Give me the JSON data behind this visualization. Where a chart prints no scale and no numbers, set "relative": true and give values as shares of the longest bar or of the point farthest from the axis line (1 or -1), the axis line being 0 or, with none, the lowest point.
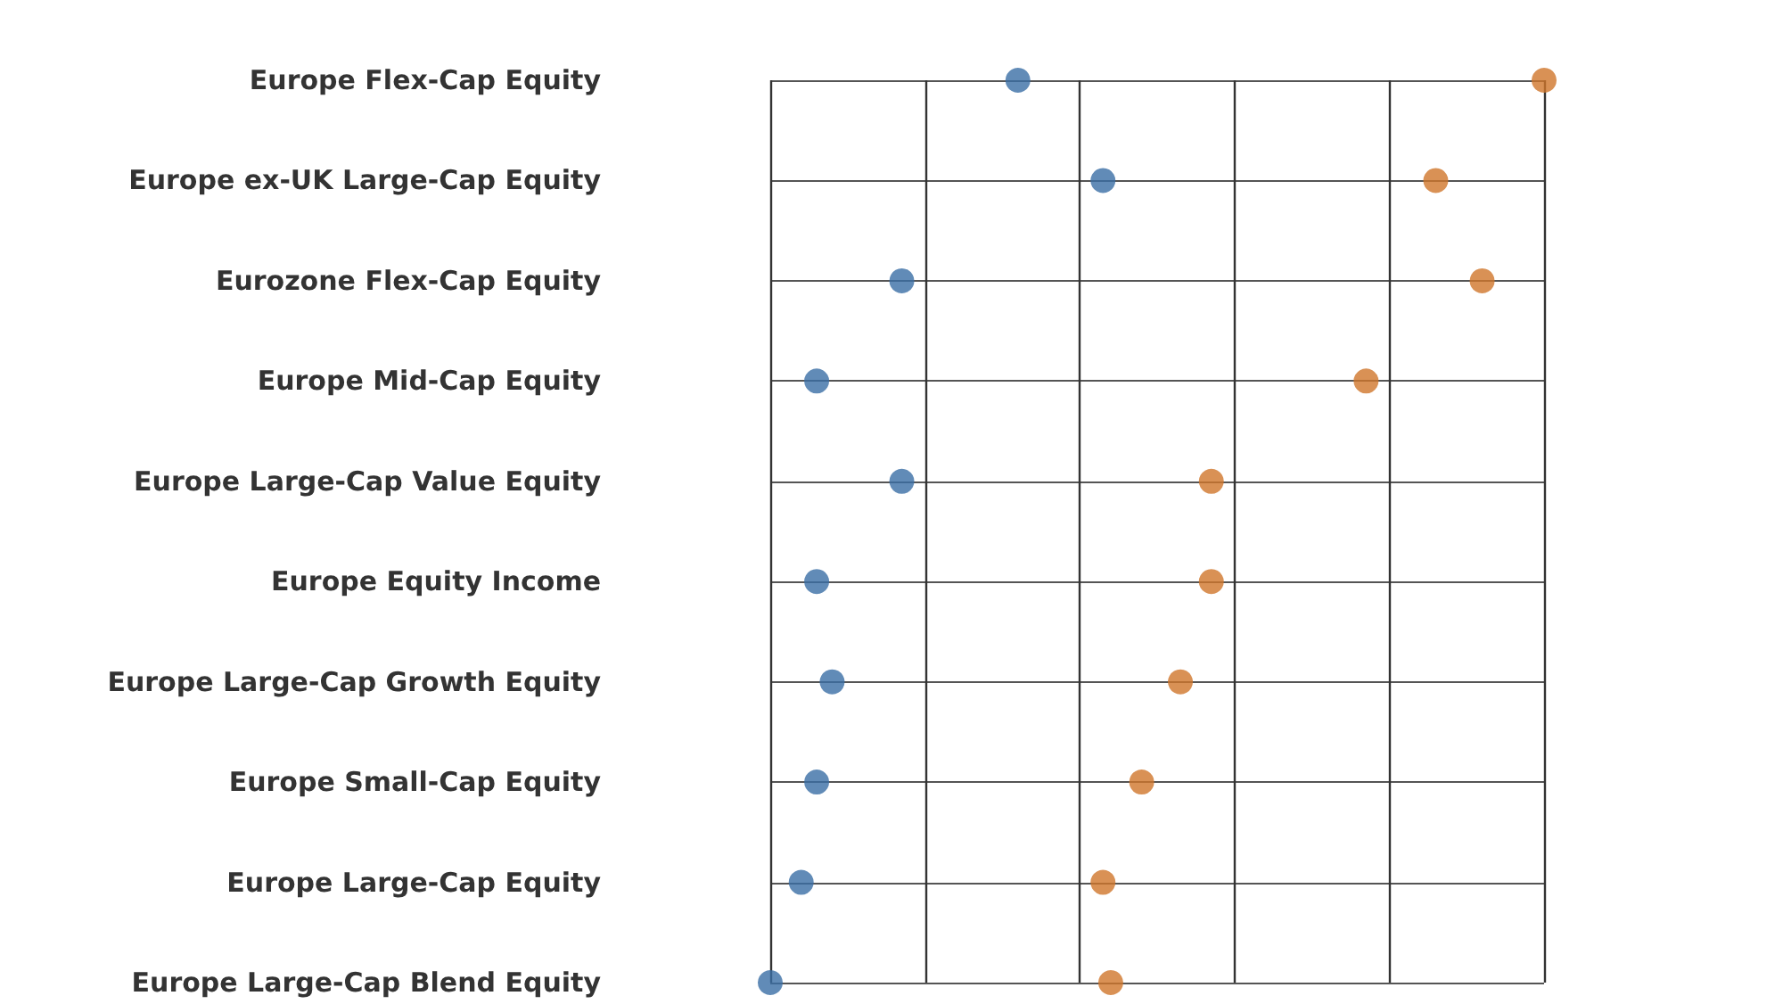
{
  "chart_data": {
    "type": "scatter",
    "orientation": "horizontal",
    "relative": true,
    "grid": true,
    "marker": "circle",
    "categories": [
      "Europe Flex-Cap Equity",
      "Europe ex-UK Large-Cap Equity",
      "Eurozone Flex-Cap Equity",
      "Europe Mid-Cap Equity",
      "Europe Large-Cap Value Equity",
      "Europe Equity Income",
      "Europe Large-Cap Growth Equity",
      "Europe Small-Cap Equity",
      "Europe Large-Cap Equity",
      "Europe Large-Cap Blend Equity"
    ],
    "series": [
      {
        "color": "#3a6ea5",
        "values": [
          0.32,
          0.43,
          0.17,
          0.06,
          0.17,
          0.06,
          0.08,
          0.06,
          0.04,
          0
        ]
      },
      {
        "color": "#d0752a",
        "values": [
          1,
          0.86,
          0.92,
          0.77,
          0.57,
          0.57,
          0.53,
          0.48,
          0.43,
          0.44
        ]
      }
    ]
  }
}
